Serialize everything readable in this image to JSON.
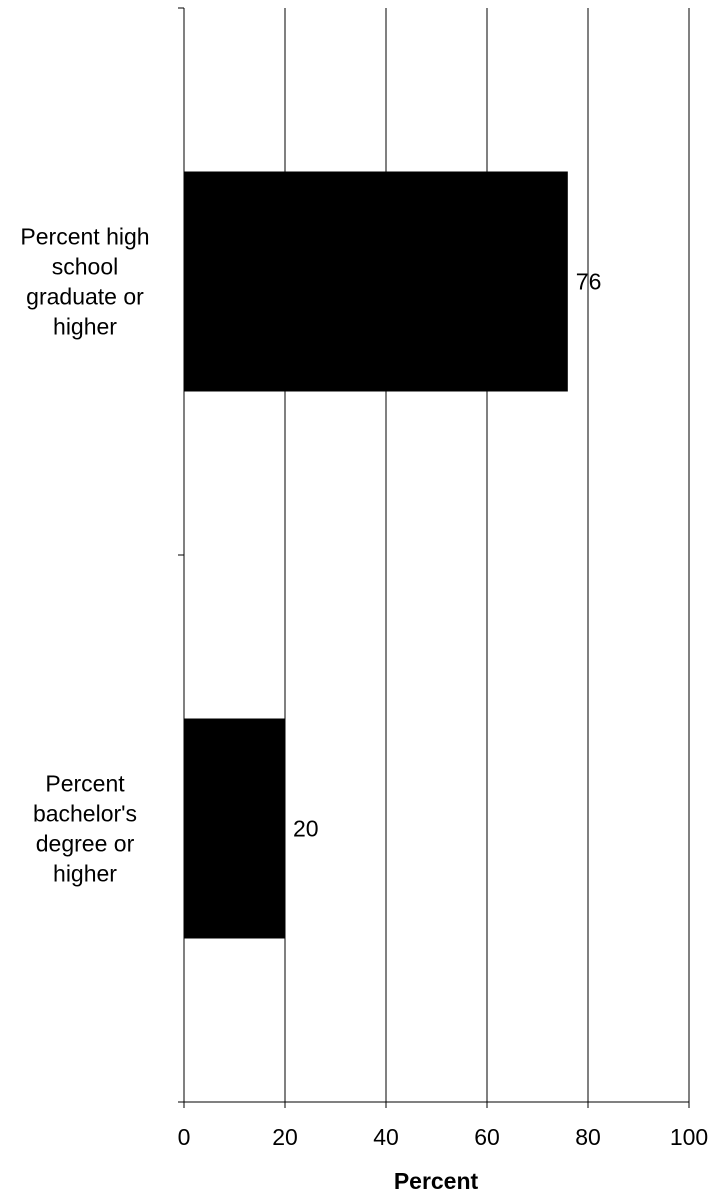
{
  "chart_data": {
    "type": "bar",
    "orientation": "horizontal",
    "categories": [
      [
        "Percent high",
        "school",
        "graduate or",
        "higher"
      ],
      [
        "Percent",
        "bachelor's",
        "degree or",
        "higher"
      ]
    ],
    "values": [
      76,
      20
    ],
    "data_labels": [
      "76",
      "20"
    ],
    "xlabel": "Percent",
    "xlim": [
      0,
      100
    ],
    "xticks": [
      0,
      20,
      40,
      60,
      80,
      100
    ],
    "xtick_labels": [
      "0",
      "20",
      "40",
      "60",
      "80",
      "100"
    ],
    "grid": "vertical",
    "bar_color": "#000000",
    "grid_color": "#000000"
  }
}
